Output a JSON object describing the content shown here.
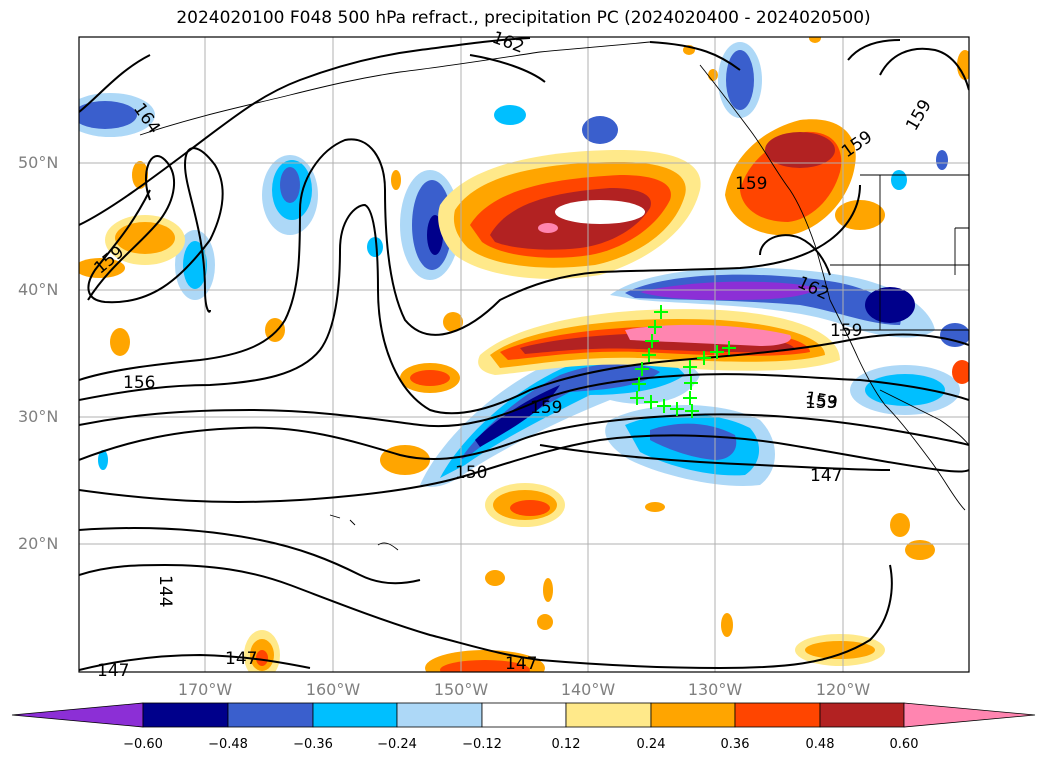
{
  "title": "2024020100 F048 500 hPa refract., precipitation PC (2024020400 - 2024020500)",
  "colors": {
    "c_neg060": "#8c2fd6",
    "c_neg048": "#00008b",
    "c_neg036": "#3a5fcd",
    "c_neg024": "#00bfff",
    "c_neg012": "#add8f7",
    "c_zero": "#ffffff",
    "c_pos012": "#ffe98a",
    "c_pos024": "#ffa500",
    "c_pos036": "#ff4500",
    "c_pos048": "#b22222",
    "c_pos060": "#ff85b0",
    "marker": "#00ff00"
  },
  "lat_labels": [
    "50°N",
    "40°N",
    "30°N",
    "20°N"
  ],
  "lon_labels": [
    "170°W",
    "160°W",
    "150°W",
    "140°W",
    "130°W",
    "120°W"
  ],
  "colorbar_ticks": [
    "−0.60",
    "−0.48",
    "−0.36",
    "−0.24",
    "−0.12",
    "0.12",
    "0.24",
    "0.36",
    "0.48",
    "0.60"
  ],
  "contour_labels": [
    "162",
    "164",
    "159",
    "159",
    "159",
    "159",
    "159",
    "162",
    "159",
    "156",
    "159",
    "153",
    "150",
    "147",
    "144",
    "147",
    "147",
    "147"
  ]
}
